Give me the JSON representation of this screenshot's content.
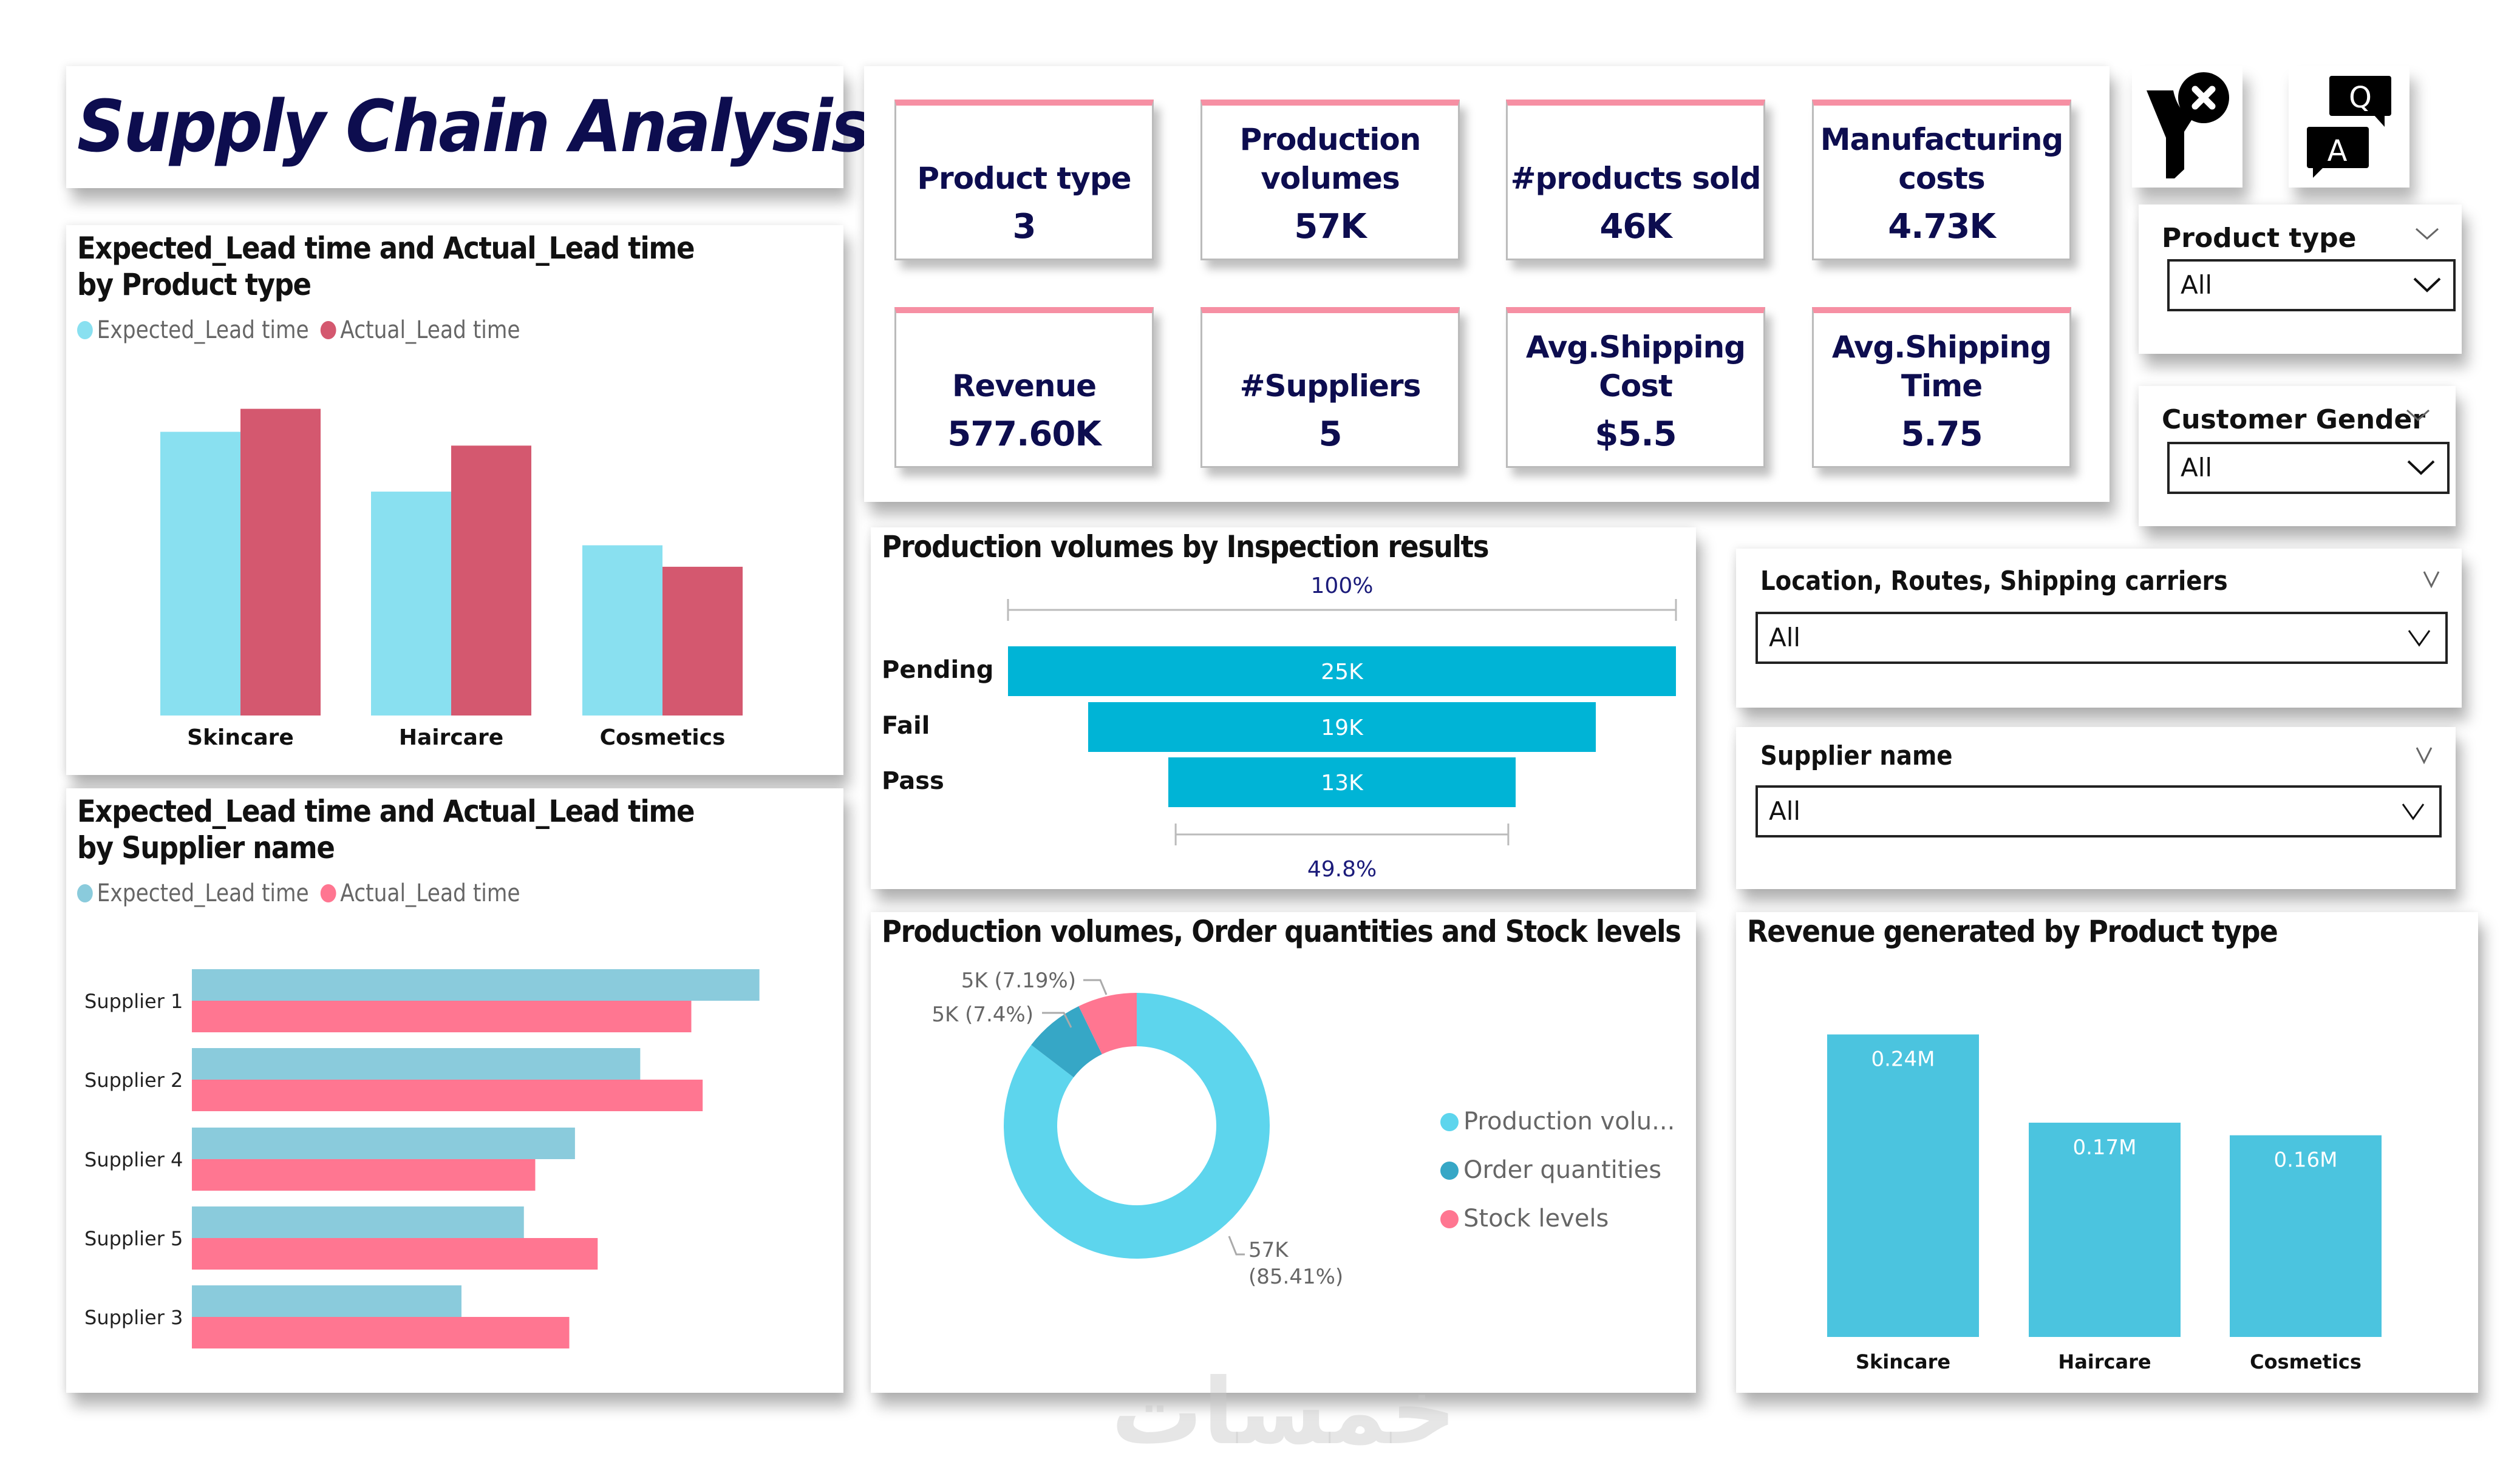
{
  "title": "Supply Chain Analysis",
  "colors": {
    "title_navy": "#0d0d4f",
    "kpi_accent": "#f68fa3",
    "expected": "#89e0f0",
    "actual_product": "#d4586f",
    "expected_supplier": "#8acbdc",
    "actual_supplier": "#ff7691",
    "funnel": "#00b4d6",
    "donut_production": "#5dd5ed",
    "donut_order": "#36a7c6",
    "donut_stock": "#ff7691",
    "revenue": "#4bc4df"
  },
  "kpis": [
    {
      "label": "Product type",
      "value": "3"
    },
    {
      "label": "Production volumes",
      "value": "57K"
    },
    {
      "label": "#products sold",
      "value": "46K"
    },
    {
      "label": "Manufacturing costs",
      "value": "4.73K"
    },
    {
      "label": "Revenue",
      "value": "577.60K"
    },
    {
      "label": "#Suppliers",
      "value": "5"
    },
    {
      "label": "Avg.Shipping Cost",
      "value": "$5.5"
    },
    {
      "label": "Avg.Shipping Time",
      "value": "5.75"
    }
  ],
  "icons": {
    "clear_filter": "clear-filter-icon",
    "qna": "question-answer-icon"
  },
  "slicers": {
    "product_type": {
      "title": "Product type",
      "value": "All"
    },
    "customer_gender": {
      "title": "Customer Gender",
      "value": "All"
    },
    "location": {
      "title": "Location, Routes, Shipping carriers",
      "value": "All"
    },
    "supplier": {
      "title": "Supplier name",
      "value": "All"
    }
  },
  "legend": {
    "expected": "Expected_Lead time",
    "actual": "Actual_Lead time"
  },
  "watermark": "خمسات",
  "chart_data": [
    {
      "id": "lead_by_product",
      "type": "bar",
      "title": "Expected_Lead time and Actual_Lead time by Product type",
      "categories": [
        "Skincare",
        "Haircare",
        "Cosmetics"
      ],
      "series": [
        {
          "name": "Expected_Lead time",
          "values": [
            18.5,
            14.6,
            11.1
          ]
        },
        {
          "name": "Actual_Lead time",
          "values": [
            20.0,
            17.6,
            9.7
          ]
        }
      ],
      "legend": "top-left",
      "grid": false,
      "ylim": [
        0,
        20.5
      ]
    },
    {
      "id": "lead_by_supplier",
      "type": "bar",
      "orientation": "horizontal",
      "title": "Expected_Lead time and Actual_Lead time by Supplier name",
      "categories": [
        "Supplier 1",
        "Supplier 2",
        "Supplier 4",
        "Supplier 5",
        "Supplier 3"
      ],
      "series": [
        {
          "name": "Expected_Lead time",
          "values": [
            20.0,
            15.8,
            13.5,
            11.7,
            9.5
          ]
        },
        {
          "name": "Actual_Lead time",
          "values": [
            17.6,
            18.0,
            12.1,
            14.3,
            13.3
          ]
        }
      ],
      "legend": "top-left",
      "grid": false,
      "xlim": [
        0,
        20.5
      ]
    },
    {
      "id": "funnel_inspection",
      "type": "bar",
      "subtype": "funnel",
      "title": "Production volumes by Inspection results",
      "categories": [
        "Pending",
        "Fail",
        "Pass"
      ],
      "values": [
        25000,
        19000,
        13000
      ],
      "value_labels": [
        "25K",
        "19K",
        "13K"
      ],
      "top_label": "100%",
      "bottom_label": "49.8%",
      "bottom_ratio": 0.498
    },
    {
      "id": "donut_volumes",
      "type": "pie",
      "subtype": "donut",
      "title": "Production volumes, Order quantities and Stock levels",
      "categories": [
        "Production volumes",
        "Order quantities",
        "Stock levels"
      ],
      "legend_labels": [
        "Production volu...",
        "Order quantities",
        "Stock levels"
      ],
      "percentages": [
        85.41,
        7.4,
        7.19
      ],
      "value_labels": [
        "57K (85.41%)",
        "5K (7.4%)",
        "5K (7.19%)"
      ],
      "legend": "right"
    },
    {
      "id": "revenue_by_product",
      "type": "bar",
      "title": "Revenue generated by Product type",
      "categories": [
        "Skincare",
        "Haircare",
        "Cosmetics"
      ],
      "values": [
        0.24,
        0.17,
        0.16
      ],
      "value_labels": [
        "0.24M",
        "0.17M",
        "0.16M"
      ],
      "unit": "M",
      "grid": false,
      "ylim": [
        0,
        0.26
      ]
    }
  ]
}
